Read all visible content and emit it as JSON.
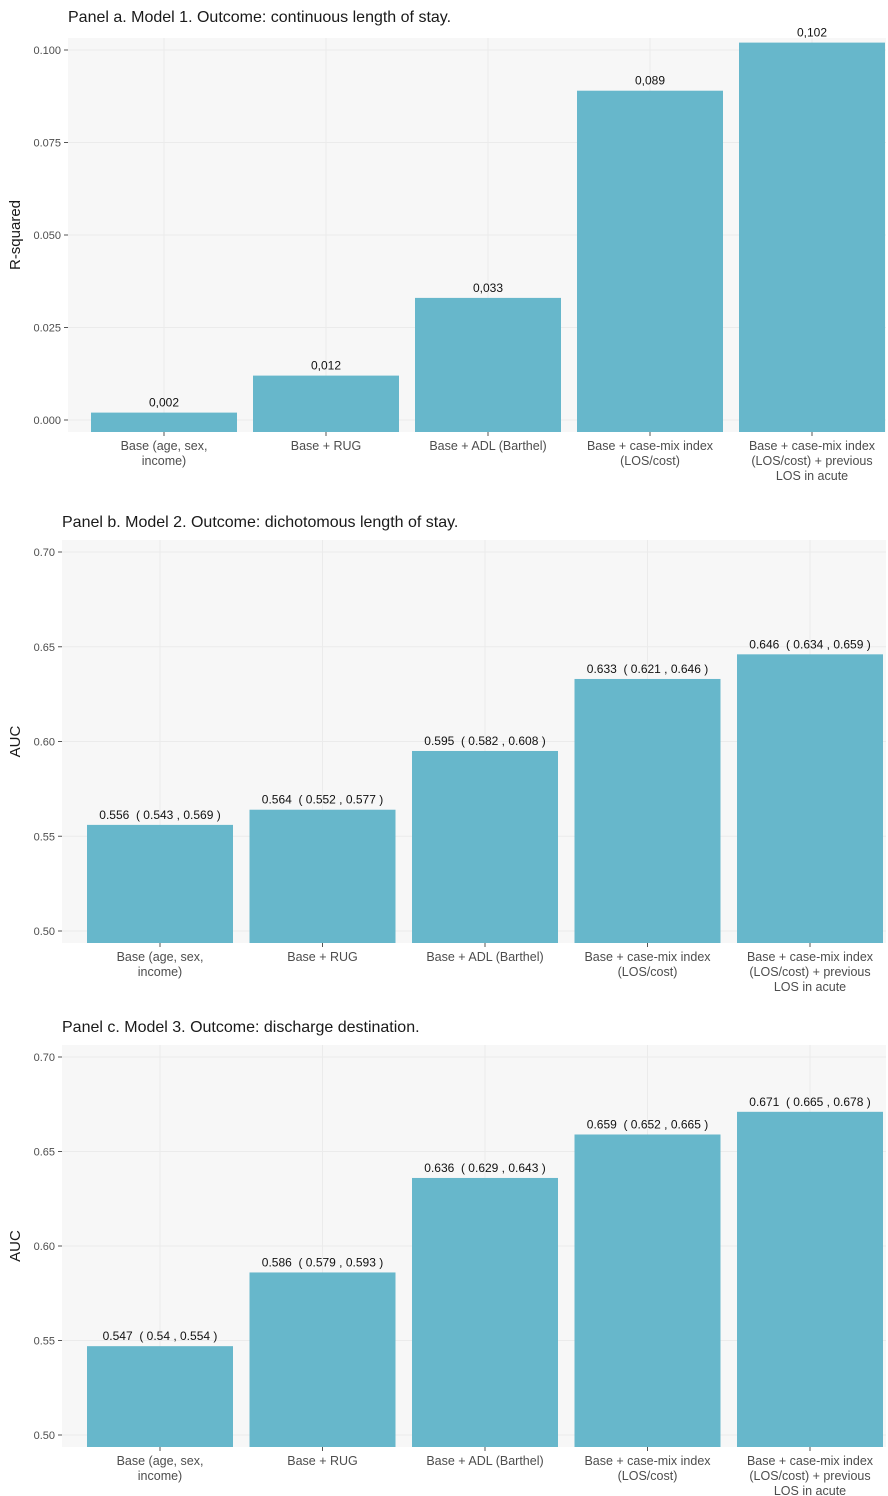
{
  "chart_data": [
    {
      "type": "bar",
      "title": "Panel a. Model 1. Outcome: continuous length of stay.",
      "ylabel": "R-squared",
      "xlabel": "",
      "ylim": [
        0,
        0.1
      ],
      "yticks": [
        "0.000",
        "0.025",
        "0.050",
        "0.075",
        "0.100"
      ],
      "ytick_values": [
        0,
        0.025,
        0.05,
        0.075,
        0.1
      ],
      "categories": [
        [
          "Base (age, sex,",
          "income)"
        ],
        [
          "Base + RUG"
        ],
        [
          "Base + ADL (Barthel)"
        ],
        [
          "Base + case-mix index",
          "(LOS/cost)"
        ],
        [
          "Base + case-mix index",
          "(LOS/cost) + previous",
          "LOS in acute"
        ]
      ],
      "values": [
        0.002,
        0.012,
        0.033,
        0.089,
        0.102
      ],
      "value_labels": [
        "0,002",
        "0,012",
        "0,033",
        "0,089",
        "0,102"
      ],
      "color": "#67b7cb",
      "panel_bg": "#f7f7f7",
      "grid": true
    },
    {
      "type": "bar",
      "title": "Panel b. Model 2. Outcome: dichotomous length of stay.",
      "ylabel": "AUC",
      "xlabel": "",
      "ylim": [
        0.5,
        0.7
      ],
      "yticks": [
        "0.50",
        "0.55",
        "0.60",
        "0.65",
        "0.70"
      ],
      "ytick_values": [
        0.5,
        0.55,
        0.6,
        0.65,
        0.7
      ],
      "categories": [
        [
          "Base (age, sex,",
          "income)"
        ],
        [
          "Base + RUG"
        ],
        [
          "Base + ADL (Barthel)"
        ],
        [
          "Base + case-mix index",
          "(LOS/cost)"
        ],
        [
          "Base + case-mix index",
          "(LOS/cost) + previous",
          "LOS in acute"
        ]
      ],
      "values": [
        0.556,
        0.564,
        0.595,
        0.633,
        0.646
      ],
      "value_labels": [
        "0.556  ( 0.543 , 0.569 )",
        "0.564  ( 0.552 , 0.577 )",
        "0.595  ( 0.582 , 0.608 )",
        "0.633  ( 0.621 , 0.646 )",
        "0.646  ( 0.634 , 0.659 )"
      ],
      "color": "#67b7cb",
      "panel_bg": "#f7f7f7",
      "grid": true
    },
    {
      "type": "bar",
      "title": "Panel c. Model 3. Outcome: discharge destination.",
      "ylabel": "AUC",
      "xlabel": "",
      "ylim": [
        0.5,
        0.7
      ],
      "yticks": [
        "0.50",
        "0.55",
        "0.60",
        "0.65",
        "0.70"
      ],
      "ytick_values": [
        0.5,
        0.55,
        0.6,
        0.65,
        0.7
      ],
      "categories": [
        [
          "Base (age, sex,",
          "income)"
        ],
        [
          "Base + RUG"
        ],
        [
          "Base + ADL (Barthel)"
        ],
        [
          "Base + case-mix index",
          "(LOS/cost)"
        ],
        [
          "Base + case-mix index",
          "(LOS/cost) + previous",
          "LOS in acute"
        ]
      ],
      "values": [
        0.547,
        0.586,
        0.636,
        0.659,
        0.671
      ],
      "value_labels": [
        "0.547  ( 0.54 , 0.554 )",
        "0.586  ( 0.579 , 0.593 )",
        "0.636  ( 0.629 , 0.643 )",
        "0.659  ( 0.652 , 0.665 )",
        "0.671  ( 0.665 , 0.678 )"
      ],
      "color": "#67b7cb",
      "panel_bg": "#f7f7f7",
      "grid": true
    }
  ]
}
